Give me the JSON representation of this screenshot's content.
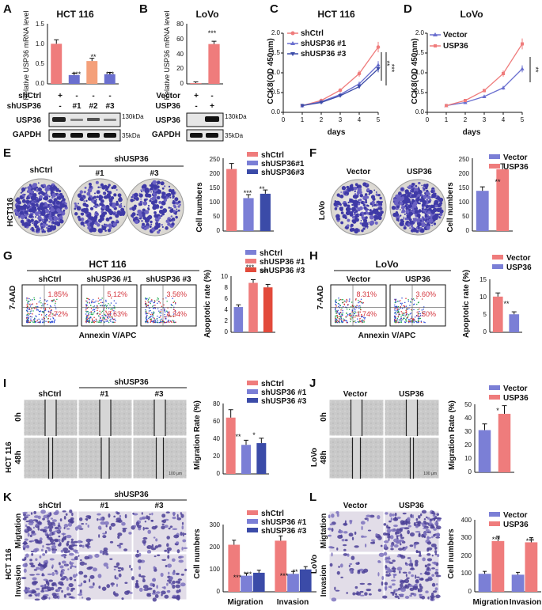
{
  "colors": {
    "red": "#ef7c7c",
    "blue": "#6a6fcf",
    "orange": "#f4a07a",
    "darkblue": "#3b4ba8",
    "crimson": "#e24a3b",
    "purple": "#7b7fd6"
  },
  "panels": {
    "A": "A",
    "B": "B",
    "C": "C",
    "D": "D",
    "E": "E",
    "F": "F",
    "G": "G",
    "H": "H",
    "I": "I",
    "J": "J",
    "K": "K",
    "L": "L"
  },
  "A": {
    "title": "HCT 116",
    "ylabel": "Relative USP36 mRNA level",
    "ticks": [
      "1.5",
      "1.0",
      "0.5",
      "0.0"
    ],
    "row1_label": "shCtrl",
    "row1": [
      "+",
      "-",
      "-",
      "-"
    ],
    "row2_label": "shUSP36",
    "row2": [
      "-",
      "#1",
      "#2",
      "#3"
    ],
    "blot1": "USP36",
    "blot2": "GAPDH",
    "kda1": "130kDa",
    "kda2": "35kDa",
    "sig": [
      "***",
      "**",
      "***"
    ]
  },
  "B": {
    "title": "LoVo",
    "ylabel": "Relative USP36 mRNA level",
    "ticks": [
      "80",
      "60",
      "40",
      "20",
      "0"
    ],
    "row1_label": "Vector",
    "row1": [
      "+",
      "-"
    ],
    "row2_label": "USP36",
    "row2": [
      "-",
      "+"
    ],
    "blot1": "USP36",
    "blot2": "GAPDH",
    "kda1": "130kDa",
    "kda2": "35kDa",
    "sig": "***"
  },
  "C": {
    "title": "HCT 116",
    "ylabel": "CCK8(OD 450nm)",
    "xlabel": "days",
    "legend": [
      "shCtrl",
      "shUSP36 #1",
      "shUSP36 #3"
    ],
    "yticks": [
      "2.0",
      "1.5",
      "1.0",
      "0.5",
      "0.0"
    ],
    "xticks": [
      "0",
      "1",
      "2",
      "3",
      "4",
      "5"
    ],
    "sig": [
      "**",
      "***"
    ]
  },
  "D": {
    "title": "LoVo",
    "ylabel": "CCK8(OD 450nm)",
    "xlabel": "days",
    "legend": [
      "Vector",
      "USP36"
    ],
    "yticks": [
      "2.0",
      "1.5",
      "1.0",
      "0.5",
      "0.0"
    ],
    "xticks": [
      "0",
      "1",
      "2",
      "3",
      "4",
      "5"
    ],
    "sig": "**"
  },
  "E": {
    "side": "HCT116",
    "groups": [
      "shCtrl",
      "shUSP36",
      "#1",
      "#3"
    ],
    "ylabel": "Cell numbers",
    "yticks": [
      "250",
      "200",
      "150",
      "100",
      "50",
      "0"
    ],
    "legend": [
      "shCtrl",
      "shUSP36#1",
      "shUSP36#3"
    ],
    "sig": [
      "***",
      "**"
    ]
  },
  "F": {
    "side": "LoVo",
    "groups": [
      "Vector",
      "USP36"
    ],
    "ylabel": "Cell numbers",
    "yticks": [
      "250",
      "200",
      "150",
      "100",
      "50",
      "0"
    ],
    "legend": [
      "Vector",
      "USP36"
    ],
    "sig": "**"
  },
  "G": {
    "title": "HCT 116",
    "ylabel": "7-AAD",
    "xlabel": "Annexin V/APC",
    "plots": [
      {
        "name": "shCtrl",
        "ur": "1.85%",
        "lr": "2.72%"
      },
      {
        "name": "shUSP36 #1",
        "ur": "5.12%",
        "lr": "3.63%"
      },
      {
        "name": "shUSP36 #3",
        "ur": "3.56%",
        "lr": "4.34%"
      }
    ],
    "bar_ylabel": "Apoptotic rate (%)",
    "yticks": [
      "10",
      "8",
      "6",
      "4",
      "2",
      "0"
    ],
    "legend": [
      "shCtrl",
      "shUSP36 #1",
      "shUSP36 #3"
    ],
    "sig": [
      "***",
      "***"
    ]
  },
  "H": {
    "title": "LoVo",
    "ylabel": "7-AAD",
    "xlabel": "Annexin V/APC",
    "plots": [
      {
        "name": "Vector",
        "ur": "8.31%",
        "lr": "1.74%"
      },
      {
        "name": "USP36",
        "ur": "3.60%",
        "lr": "1.50%"
      }
    ],
    "bar_ylabel": "Apoptotic rate (%)",
    "yticks": [
      "15",
      "10",
      "5",
      "0"
    ],
    "legend": [
      "Vector",
      "USP36"
    ],
    "sig": "**"
  },
  "I": {
    "group": "shUSP36",
    "cols": [
      "shCtrl",
      "#1",
      "#3"
    ],
    "rows": [
      "0h",
      "48h"
    ],
    "side": "HCT 116",
    "ylabel": "Migration Rate (%)",
    "yticks": [
      "80",
      "60",
      "40",
      "20",
      "0"
    ],
    "legend": [
      "shCtrl",
      "shUSP36 #1",
      "shUSP36 #3"
    ],
    "sig": [
      "**",
      "*"
    ],
    "scale": "100 μm"
  },
  "J": {
    "cols": [
      "Vector",
      "USP36"
    ],
    "rows": [
      "0h",
      "48h"
    ],
    "side": "LoVo",
    "ylabel": "Migration Rate (%)",
    "yticks": [
      "50",
      "40",
      "30",
      "20",
      "10",
      "0"
    ],
    "legend": [
      "Vector",
      "USP36"
    ],
    "sig": "*",
    "scale": "100 μm"
  },
  "K": {
    "group": "shUSP36",
    "cols": [
      "shCtrl",
      "#1",
      "#3"
    ],
    "rows": [
      "Migtation",
      "Invasion"
    ],
    "side": "HCT 116",
    "ylabel": "Cell numbers",
    "yticks": [
      "300",
      "200",
      "100",
      "0"
    ],
    "xgroups": [
      "Migration",
      "Invasion"
    ],
    "legend": [
      "shCtrl",
      "shUSP36 #1",
      "shUSP36 #3"
    ],
    "sig": [
      "***",
      "***",
      "***",
      "**"
    ]
  },
  "L": {
    "cols": [
      "Vector",
      "USP36"
    ],
    "rows": [
      "Migtation",
      "Invasion"
    ],
    "side": "LoVo",
    "ylabel": "Cell numbers",
    "yticks": [
      "400",
      "300",
      "200",
      "100",
      "0"
    ],
    "xgroups": [
      "Migration",
      "Invasion"
    ],
    "legend": [
      "Vector",
      "USP36"
    ],
    "sig": [
      "***",
      "***"
    ]
  },
  "chart_data": [
    {
      "panel": "A",
      "type": "bar",
      "categories": [
        "shCtrl",
        "#1",
        "#2",
        "#3"
      ],
      "values": [
        1.0,
        0.22,
        0.57,
        0.24
      ],
      "ylim": [
        0,
        1.5
      ],
      "ylabel": "Relative USP36 mRNA level",
      "title": "HCT 116"
    },
    {
      "panel": "B",
      "type": "bar",
      "categories": [
        "Vector",
        "USP36"
      ],
      "values": [
        1,
        53
      ],
      "ylim": [
        0,
        80
      ],
      "ylabel": "Relative USP36 mRNA level",
      "title": "LoVo"
    },
    {
      "panel": "C",
      "type": "line",
      "x": [
        1,
        2,
        3,
        4,
        5
      ],
      "series": [
        {
          "name": "shCtrl",
          "values": [
            0.17,
            0.3,
            0.56,
            0.98,
            1.65
          ]
        },
        {
          "name": "shUSP36 #1",
          "values": [
            0.17,
            0.27,
            0.45,
            0.72,
            1.2
          ]
        },
        {
          "name": "shUSP36 #3",
          "values": [
            0.17,
            0.25,
            0.42,
            0.65,
            1.1
          ]
        }
      ],
      "xlim": [
        0,
        5
      ],
      "ylim": [
        0,
        2
      ],
      "xlabel": "days",
      "ylabel": "CCK8(OD 450nm)",
      "title": "HCT 116"
    },
    {
      "panel": "D",
      "type": "line",
      "x": [
        1,
        2,
        3,
        4,
        5
      ],
      "series": [
        {
          "name": "Vector",
          "values": [
            0.17,
            0.25,
            0.4,
            0.62,
            1.1
          ]
        },
        {
          "name": "USP36",
          "values": [
            0.17,
            0.3,
            0.55,
            0.98,
            1.73
          ]
        }
      ],
      "xlim": [
        0,
        5
      ],
      "ylim": [
        0,
        2
      ],
      "xlabel": "days",
      "ylabel": "CCK8(OD 450nm)",
      "title": "LoVo"
    },
    {
      "panel": "E",
      "type": "bar",
      "categories": [
        "shCtrl",
        "shUSP36#1",
        "shUSP36#3"
      ],
      "values": [
        213,
        113,
        128
      ],
      "ylim": [
        0,
        250
      ],
      "ylabel": "Cell numbers"
    },
    {
      "panel": "F",
      "type": "bar",
      "categories": [
        "Vector",
        "USP36"
      ],
      "values": [
        138,
        212
      ],
      "ylim": [
        0,
        250
      ],
      "ylabel": "Cell numbers"
    },
    {
      "panel": "G",
      "type": "bar",
      "categories": [
        "shCtrl",
        "shUSP36 #1",
        "shUSP36 #3"
      ],
      "values": [
        4.5,
        8.8,
        8.0
      ],
      "ylim": [
        0,
        10
      ],
      "ylabel": "Apoptotic rate (%)"
    },
    {
      "panel": "H",
      "type": "bar",
      "categories": [
        "Vector",
        "USP36"
      ],
      "values": [
        10.1,
        5.1
      ],
      "ylim": [
        0,
        15
      ],
      "ylabel": "Apoptotic rate (%)"
    },
    {
      "panel": "I",
      "type": "bar",
      "categories": [
        "shCtrl",
        "shUSP36 #1",
        "shUSP36 #3"
      ],
      "values": [
        64,
        33,
        35
      ],
      "ylim": [
        0,
        80
      ],
      "ylabel": "Migration Rate (%)"
    },
    {
      "panel": "J",
      "type": "bar",
      "categories": [
        "Vector",
        "USP36"
      ],
      "values": [
        31,
        43
      ],
      "ylim": [
        0,
        50
      ],
      "ylabel": "Migration Rate (%)"
    },
    {
      "panel": "K",
      "type": "bar",
      "categories": [
        "Migration",
        "Invasion"
      ],
      "series": [
        {
          "name": "shCtrl",
          "values": [
            210,
            228
          ]
        },
        {
          "name": "shUSP36 #1",
          "values": [
            72,
            80
          ]
        },
        {
          "name": "shUSP36 #3",
          "values": [
            85,
            100
          ]
        }
      ],
      "ylim": [
        0,
        300
      ],
      "ylabel": "Cell numbers"
    },
    {
      "panel": "L",
      "type": "bar",
      "categories": [
        "Migration",
        "Invasion"
      ],
      "series": [
        {
          "name": "Vector",
          "values": [
            100,
            95
          ]
        },
        {
          "name": "USP36",
          "values": [
            282,
            275
          ]
        }
      ],
      "ylim": [
        0,
        400
      ],
      "ylabel": "Cell numbers"
    }
  ]
}
